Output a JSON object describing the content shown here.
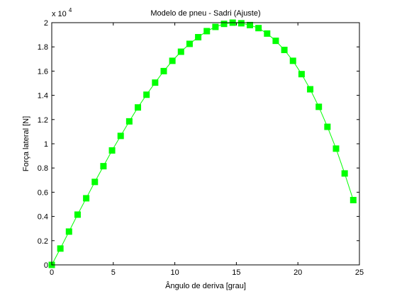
{
  "chart_data": {
    "type": "line",
    "title": "Modelo de pneu - Sadri (Ajuste)",
    "xlabel": "Ângulo de deriva [grau]",
    "ylabel": "Força lateral [N]",
    "y_exponent_label": "x 10",
    "y_exponent_power": "4",
    "xlim": [
      0,
      25
    ],
    "ylim": [
      0,
      2
    ],
    "x_ticks": [
      0,
      5,
      10,
      15,
      20,
      25
    ],
    "x_tick_labels": [
      "0",
      "5",
      "10",
      "15",
      "20",
      "25"
    ],
    "y_ticks": [
      0,
      0.2,
      0.4,
      0.6,
      0.8,
      1,
      1.2,
      1.4,
      1.6,
      1.8,
      2
    ],
    "y_tick_labels": [
      "0",
      "0.2",
      "0.4",
      "0.6",
      "0.8",
      "1",
      "1.2",
      "1.4",
      "1.6",
      "1.8",
      "2"
    ],
    "grid": false,
    "legend": "none",
    "series": [
      {
        "color": "#00ff00",
        "marker": "square",
        "x": [
          0,
          0.7,
          1.4,
          2.1,
          2.8,
          3.5,
          4.2,
          4.9,
          5.6,
          6.3,
          7.0,
          7.7,
          8.4,
          9.1,
          9.8,
          10.5,
          11.2,
          11.9,
          12.6,
          13.3,
          14.0,
          14.7,
          15.4,
          16.1,
          16.8,
          17.5,
          18.2,
          18.9,
          19.6,
          20.3,
          21.0,
          21.7,
          22.4,
          23.1,
          23.8,
          24.5
        ],
        "y": [
          0,
          0.135,
          0.275,
          0.415,
          0.55,
          0.685,
          0.815,
          0.945,
          1.065,
          1.185,
          1.3,
          1.405,
          1.505,
          1.6,
          1.685,
          1.76,
          1.825,
          1.88,
          1.93,
          1.965,
          1.99,
          2.0,
          1.995,
          1.98,
          1.955,
          1.91,
          1.85,
          1.775,
          1.685,
          1.575,
          1.45,
          1.305,
          1.14,
          0.96,
          0.755,
          0.535
        ]
      }
    ]
  }
}
